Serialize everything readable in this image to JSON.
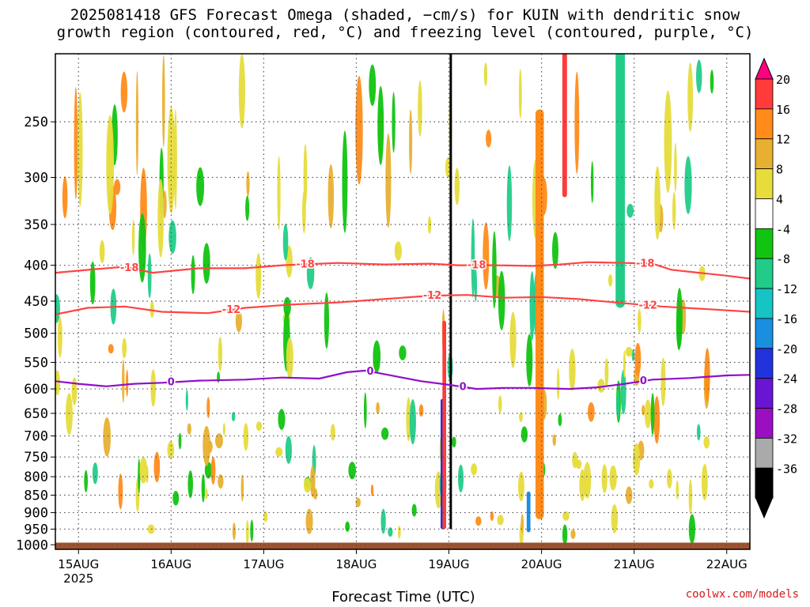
{
  "title": {
    "line1": "2025081418 GFS Forecast Omega (shaded, −cm/s) for KUIN with dendritic snow",
    "line2": "growth region (contoured, red, °C) and freezing level (contoured, purple, °C)"
  },
  "xlabel": "Forecast Time (UTC)",
  "credit": "coolwx.com/models",
  "chart_data": {
    "type": "heatmap",
    "x": {
      "ticks": [
        "15AUG",
        "16AUG",
        "17AUG",
        "18AUG",
        "19AUG",
        "20AUG",
        "21AUG",
        "22AUG"
      ],
      "sublabel": "2025",
      "range_days": [
        14.75,
        22.25
      ]
    },
    "y": {
      "ticks": [
        250,
        300,
        350,
        400,
        450,
        500,
        550,
        600,
        650,
        700,
        750,
        800,
        850,
        900,
        950,
        1000
      ],
      "range_hpa": [
        200,
        1015
      ],
      "scale": "log",
      "inverted": true
    },
    "colorbar": {
      "labels": [
        "20",
        "16",
        "12",
        "8",
        "4",
        "-4",
        "-8",
        "-12",
        "-16",
        "-20",
        "-24",
        "-28",
        "-32",
        "-36"
      ],
      "colors": [
        "#ff0080",
        "#ff3b3b",
        "#ff8c1a",
        "#e8b030",
        "#e6dc3c",
        "#ffffff",
        "#11c411",
        "#22cc88",
        "#16c4c4",
        "#1a8fe0",
        "#2233dd",
        "#6a14d4",
        "#9b0fc2",
        "#aaaaaa",
        "#000000"
      ]
    },
    "shaded_features": [
      {
        "x": 19.98,
        "p_top": 370,
        "p_bottom": 760,
        "w": 0.05,
        "level": 20
      },
      {
        "x": 19.98,
        "p_top": 240,
        "p_bottom": 920,
        "w": 0.09,
        "level": 12
      },
      {
        "x": 20.25,
        "p_top": 180,
        "p_bottom": 320,
        "w": 0.05,
        "level": 16
      },
      {
        "x": 20.85,
        "p_top": 180,
        "p_bottom": 420,
        "w": 0.05,
        "level": -24
      },
      {
        "x": 20.85,
        "p_top": 170,
        "p_bottom": 460,
        "w": 0.1,
        "level": -12
      },
      {
        "x": 19.02,
        "p_top": 200,
        "p_bottom": 950,
        "w": 0.025,
        "level": -36
      },
      {
        "x": 18.93,
        "p_top": 620,
        "p_bottom": 950,
        "w": 0.04,
        "level": -24
      },
      {
        "x": 19.86,
        "p_top": 840,
        "p_bottom": 960,
        "w": 0.04,
        "level": -20
      },
      {
        "x": 18.95,
        "p_top": 480,
        "p_bottom": 950,
        "w": 0.04,
        "level": 16
      }
    ],
    "contours": [
      {
        "name": "-18",
        "color": "#ff4444",
        "points": [
          [
            14.75,
            410
          ],
          [
            15.2,
            405
          ],
          [
            15.5,
            402
          ],
          [
            15.8,
            410
          ],
          [
            16.3,
            404
          ],
          [
            16.8,
            404
          ],
          [
            17.2,
            400
          ],
          [
            17.8,
            397
          ],
          [
            18.3,
            399
          ],
          [
            18.8,
            398
          ],
          [
            19.1,
            400
          ],
          [
            19.5,
            400
          ],
          [
            19.9,
            401
          ],
          [
            20.2,
            399
          ],
          [
            20.5,
            396
          ],
          [
            20.9,
            397
          ],
          [
            21.2,
            398
          ],
          [
            21.4,
            406
          ],
          [
            21.7,
            410
          ],
          [
            22.0,
            414
          ],
          [
            22.25,
            418
          ]
        ],
        "labels": [
          [
            15.55,
            "-18"
          ],
          [
            17.45,
            "-18"
          ],
          [
            19.3,
            "-18"
          ],
          [
            21.12,
            "-18"
          ]
        ]
      },
      {
        "name": "-12",
        "color": "#ff4444",
        "points": [
          [
            14.75,
            470
          ],
          [
            15.1,
            460
          ],
          [
            15.5,
            458
          ],
          [
            15.9,
            466
          ],
          [
            16.4,
            468
          ],
          [
            16.8,
            460
          ],
          [
            17.3,
            455
          ],
          [
            17.8,
            452
          ],
          [
            18.3,
            447
          ],
          [
            18.8,
            442
          ],
          [
            19.2,
            441
          ],
          [
            19.6,
            445
          ],
          [
            20.0,
            444
          ],
          [
            20.4,
            447
          ],
          [
            20.8,
            452
          ],
          [
            21.3,
            458
          ],
          [
            21.8,
            462
          ],
          [
            22.25,
            466
          ]
        ],
        "labels": [
          [
            16.65,
            "-12"
          ],
          [
            18.82,
            "-12"
          ],
          [
            21.15,
            "-12"
          ]
        ]
      },
      {
        "name": "0",
        "color": "#9010c8",
        "points": [
          [
            14.75,
            585
          ],
          [
            15.0,
            590
          ],
          [
            15.3,
            595
          ],
          [
            15.6,
            590
          ],
          [
            15.9,
            588
          ],
          [
            16.3,
            584
          ],
          [
            16.8,
            582
          ],
          [
            17.2,
            578
          ],
          [
            17.6,
            580
          ],
          [
            17.9,
            568
          ],
          [
            18.1,
            565
          ],
          [
            18.4,
            575
          ],
          [
            18.7,
            585
          ],
          [
            19.0,
            592
          ],
          [
            19.3,
            600
          ],
          [
            19.6,
            598
          ],
          [
            19.9,
            598
          ],
          [
            20.3,
            600
          ],
          [
            20.6,
            597
          ],
          [
            20.9,
            590
          ],
          [
            21.2,
            582
          ],
          [
            21.6,
            579
          ],
          [
            22.0,
            574
          ],
          [
            22.25,
            573
          ]
        ],
        "labels": [
          [
            16.0,
            "0"
          ],
          [
            18.15,
            "0"
          ],
          [
            19.15,
            "0"
          ],
          [
            21.1,
            "0"
          ]
        ]
      }
    ]
  }
}
